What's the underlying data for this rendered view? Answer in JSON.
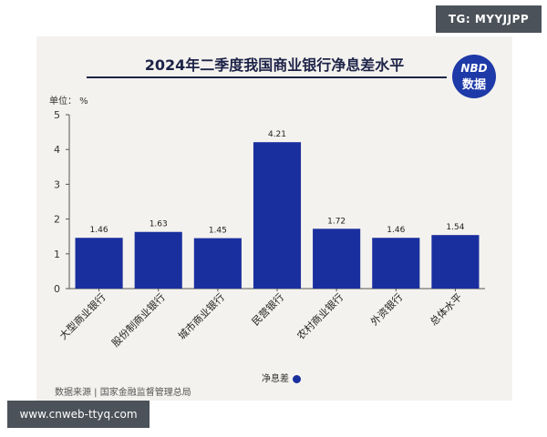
{
  "overlays": {
    "top_right_tag": "TG: MYYJJPP",
    "bottom_left_tag": "www.cnweb-ttyq.com"
  },
  "logo": {
    "top": "NBD",
    "bottom": "数据"
  },
  "source": "数据来源 | 国家金融监督管理总局",
  "colors": {
    "bar": "#1a2f9e",
    "title": "#1d2348",
    "background": "#f4f2ee"
  },
  "chart_data": {
    "type": "bar",
    "title": "2024年二季度我国商业银行净息差水平",
    "unit_label": "单位： %",
    "categories": [
      "大型商业银行",
      "股份制商业银行",
      "城市商业银行",
      "民营银行",
      "农村商业银行",
      "外资银行",
      "总体水平"
    ],
    "series": [
      {
        "name": "净息差",
        "values": [
          1.46,
          1.63,
          1.45,
          4.21,
          1.72,
          1.46,
          1.54
        ]
      }
    ],
    "ylim": [
      0,
      5
    ],
    "yticks": [
      0,
      1,
      2,
      3,
      4,
      5
    ],
    "grid": false,
    "legend_position": "bottom"
  }
}
